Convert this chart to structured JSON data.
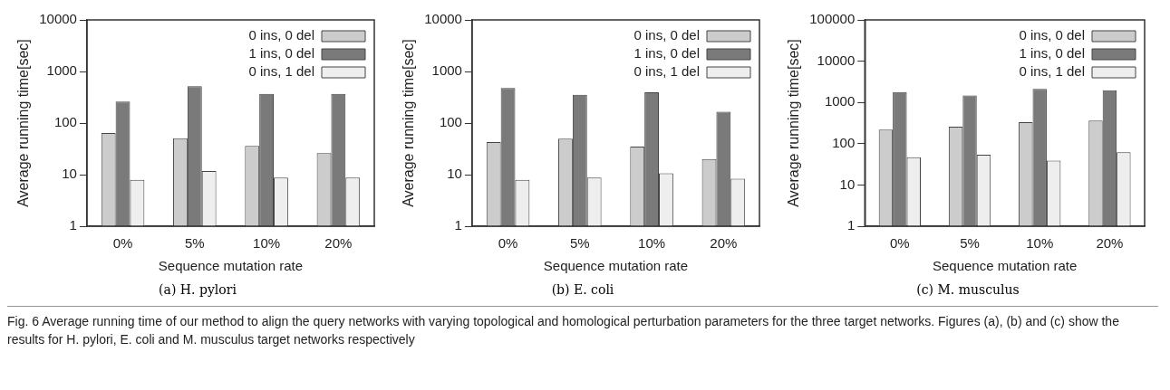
{
  "chart_data": [
    {
      "type": "bar",
      "title": "(a)  H. pylori",
      "xlabel": "Sequence mutation rate",
      "ylabel": "Average running time[sec]",
      "categories": [
        "0%",
        "5%",
        "10%",
        "20%"
      ],
      "series": [
        {
          "name": "0 ins, 0 del",
          "color": "#cccccc",
          "values": [
            64,
            51,
            36,
            26
          ]
        },
        {
          "name": "1 ins, 0 del",
          "color": "#7a7a7a",
          "values": [
            262,
            518,
            368,
            368
          ]
        },
        {
          "name": "0 ins, 1 del",
          "color": "#eeeeee",
          "values": [
            7.9,
            11.8,
            8.8,
            8.8
          ]
        }
      ],
      "log": "y",
      "ylim": [
        1,
        10000
      ],
      "yticks": [
        1,
        10,
        100,
        1000,
        10000
      ],
      "grid": false,
      "legend": "top right",
      "annotations": [
        "Fig. 6 Average running time of our method to align the query networks with varying topological and homological perturbation parameters for the three target networks. Figures (a), (b) and (c) show the results for H. pylori, E. coli and M. musculus target networks respectively"
      ]
    },
    {
      "type": "bar",
      "title": "(b)  E. coli",
      "xlabel": "Sequence mutation rate",
      "ylabel": "Average running time[sec]",
      "categories": [
        "0%",
        "5%",
        "10%",
        "20%"
      ],
      "series": [
        {
          "name": "0 ins, 0 del",
          "color": "#cccccc",
          "values": [
            43,
            50,
            35,
            20
          ]
        },
        {
          "name": "1 ins, 0 del",
          "color": "#7a7a7a",
          "values": [
            477,
            353,
            394,
            165
          ]
        },
        {
          "name": "0 ins, 1 del",
          "color": "#eeeeee",
          "values": [
            7.9,
            8.8,
            10.6,
            8.3
          ]
        }
      ],
      "log": "y",
      "ylim": [
        1,
        10000
      ],
      "yticks": [
        1,
        10,
        100,
        1000,
        10000
      ],
      "grid": false,
      "legend": "top right"
    },
    {
      "type": "bar",
      "title": "(c)  M. musculus",
      "xlabel": "Sequence mutation rate",
      "ylabel": "Average running time[sec]",
      "categories": [
        "0%",
        "5%",
        "10%",
        "20%"
      ],
      "series": [
        {
          "name": "0 ins, 0 del",
          "color": "#cccccc",
          "values": [
            218,
            258,
            333,
            362
          ]
        },
        {
          "name": "1 ins, 0 del",
          "color": "#7a7a7a",
          "values": [
            1790,
            1480,
            2120,
            1980
          ]
        },
        {
          "name": "0 ins, 1 del",
          "color": "#eeeeee",
          "values": [
            47,
            54,
            39,
            62
          ]
        }
      ],
      "log": "y",
      "ylim": [
        1,
        100000
      ],
      "yticks": [
        1,
        10,
        100,
        1000,
        10000,
        100000
      ],
      "grid": false,
      "legend": "top right"
    }
  ]
}
